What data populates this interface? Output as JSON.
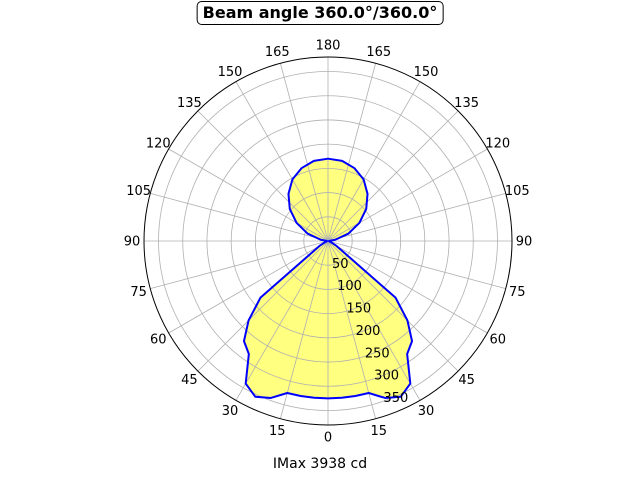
{
  "chart_data": {
    "type": "polar",
    "title": "Beam angle 360.0°/360.0°",
    "xlabel": "IMax 3938 cd",
    "angle_tick_labels": [
      "0",
      "15",
      "30",
      "45",
      "60",
      "75",
      "90",
      "105",
      "120",
      "135",
      "150",
      "165",
      "180",
      "165",
      "150",
      "135",
      "120",
      "105",
      "90",
      "75",
      "60",
      "45",
      "30",
      "15"
    ],
    "radial_tick_labels": [
      "50",
      "100",
      "150",
      "200",
      "250",
      "300",
      "350"
    ],
    "radial_ticks": [
      50,
      100,
      150,
      200,
      250,
      300,
      350
    ],
    "rlim": [
      0,
      380
    ],
    "grid": true,
    "fill_color": "#ffff80",
    "line_color": "#0000ff",
    "series": [
      {
        "angles_deg": [
          -180,
          -170,
          -160,
          -150,
          -140,
          -130,
          -120,
          -110,
          -100,
          -90,
          -80,
          -70,
          -60,
          -50,
          -45,
          -40,
          -35,
          -30,
          -25,
          -20,
          -15,
          -10,
          -5,
          0,
          5,
          10,
          15,
          20,
          25,
          30,
          35,
          40,
          45,
          50,
          60,
          70,
          80,
          90,
          100,
          110,
          120,
          130,
          140,
          150,
          160,
          170,
          180
        ],
        "values": [
          170,
          168,
          160,
          147,
          127,
          103,
          75,
          45,
          15,
          2,
          2,
          5,
          20,
          182,
          232,
          270,
          285,
          340,
          355,
          345,
          325,
          325,
          325,
          325,
          325,
          325,
          325,
          345,
          355,
          340,
          285,
          270,
          232,
          182,
          20,
          5,
          2,
          2,
          15,
          45,
          75,
          103,
          127,
          147,
          160,
          168,
          170
        ]
      }
    ]
  }
}
